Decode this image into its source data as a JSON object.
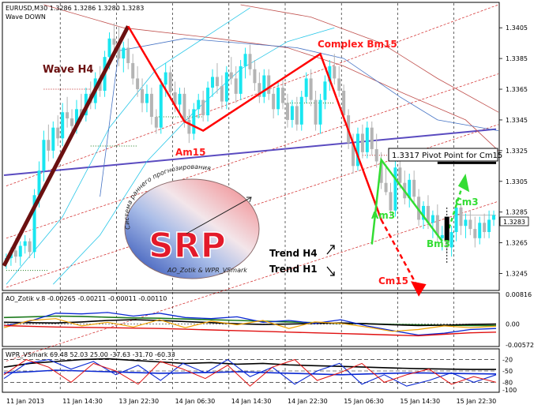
{
  "header": {
    "symbol_line": "EURUSD,M30  1.3286 1.3286 1.3280 1.3283",
    "subtitle": "Wave DOWN"
  },
  "colors": {
    "bar_cyan": "#19e6f0",
    "bar_gray": "#b4b4b4",
    "wave_h4": "#6b1010",
    "red": "#ff0000",
    "green": "#33dd33",
    "pivot": "#5a4bc0",
    "ao_black": "#000000",
    "ao_green": "#1c7a1c",
    "ao_blue": "#0a28d2",
    "ao_orange": "#f0a000",
    "ao_red": "#e01010"
  },
  "chart_data": [
    {
      "type": "candlestick",
      "name": "main",
      "ylim": [
        1.3235,
        1.342
      ],
      "y_ticks": [
        1.3245,
        1.3265,
        1.3285,
        1.3305,
        1.3325,
        1.3345,
        1.3365,
        1.3385,
        1.3405
      ],
      "current_price_label": "1.3283",
      "current_price": 1.3283,
      "x_labels": [
        "11 Jan 2013",
        "11 Jan 14:30",
        "13 Jan 22:30",
        "14 Jan 06:30",
        "14 Jan 14:30",
        "14 Jan 22:30",
        "15 Jan 06:30",
        "15 Jan 14:30",
        "15 Jan 22:30"
      ],
      "x_label_index": [
        0,
        12,
        24,
        36,
        48,
        60,
        72,
        84,
        96
      ],
      "vertical_grid_index": [
        12,
        24,
        36,
        48,
        60,
        72,
        84,
        96
      ],
      "bars_total": 105,
      "bars": [
        [
          1.3252,
          1.3258,
          1.3248,
          1.3255,
          "c"
        ],
        [
          1.3255,
          1.3262,
          1.325,
          1.326,
          "c"
        ],
        [
          1.326,
          1.3268,
          1.3252,
          1.3256,
          "g"
        ],
        [
          1.3256,
          1.3266,
          1.325,
          1.3263,
          "c"
        ],
        [
          1.3263,
          1.327,
          1.3258,
          1.3266,
          "c"
        ],
        [
          1.3266,
          1.3268,
          1.3255,
          1.3259,
          "g"
        ],
        [
          1.3259,
          1.33,
          1.3255,
          1.3296,
          "c"
        ],
        [
          1.3296,
          1.3318,
          1.3288,
          1.3312,
          "c"
        ],
        [
          1.3312,
          1.3338,
          1.3305,
          1.3332,
          "c"
        ],
        [
          1.3332,
          1.3342,
          1.3318,
          1.3325,
          "g"
        ],
        [
          1.3325,
          1.3344,
          1.332,
          1.334,
          "c"
        ],
        [
          1.334,
          1.3348,
          1.3328,
          1.3333,
          "g"
        ],
        [
          1.3333,
          1.3356,
          1.3328,
          1.335,
          "c"
        ],
        [
          1.335,
          1.336,
          1.334,
          1.3346,
          "g"
        ],
        [
          1.3346,
          1.3352,
          1.3336,
          1.3341,
          "g"
        ],
        [
          1.3341,
          1.3358,
          1.3336,
          1.3352,
          "c"
        ],
        [
          1.3352,
          1.3362,
          1.3344,
          1.3348,
          "g"
        ],
        [
          1.3348,
          1.3366,
          1.3344,
          1.3362,
          "c"
        ],
        [
          1.3362,
          1.337,
          1.3352,
          1.3356,
          "g"
        ],
        [
          1.3356,
          1.3376,
          1.3352,
          1.3372,
          "c"
        ],
        [
          1.3372,
          1.338,
          1.336,
          1.3364,
          "g"
        ],
        [
          1.3364,
          1.339,
          1.336,
          1.3386,
          "c"
        ],
        [
          1.3386,
          1.3402,
          1.3378,
          1.3398,
          "c"
        ],
        [
          1.3398,
          1.3408,
          1.339,
          1.3394,
          "g"
        ],
        [
          1.3394,
          1.3406,
          1.338,
          1.3385,
          "g"
        ],
        [
          1.3385,
          1.3396,
          1.3376,
          1.3392,
          "c"
        ],
        [
          1.3392,
          1.3398,
          1.3378,
          1.3382,
          "g"
        ],
        [
          1.3382,
          1.3388,
          1.3368,
          1.3372,
          "g"
        ],
        [
          1.3372,
          1.338,
          1.336,
          1.3365,
          "g"
        ],
        [
          1.3365,
          1.3372,
          1.335,
          1.3356,
          "g"
        ],
        [
          1.3356,
          1.3368,
          1.335,
          1.3362,
          "c"
        ],
        [
          1.3362,
          1.3366,
          1.3342,
          1.3347,
          "g"
        ],
        [
          1.3347,
          1.3352,
          1.3336,
          1.334,
          "g"
        ],
        [
          1.334,
          1.3372,
          1.3336,
          1.3368,
          "c"
        ],
        [
          1.3368,
          1.3382,
          1.336,
          1.3376,
          "c"
        ],
        [
          1.3376,
          1.338,
          1.3358,
          1.3363,
          "g"
        ],
        [
          1.3363,
          1.337,
          1.335,
          1.3355,
          "g"
        ],
        [
          1.3355,
          1.3366,
          1.335,
          1.3362,
          "c"
        ],
        [
          1.3362,
          1.3366,
          1.334,
          1.3345,
          "g"
        ],
        [
          1.3345,
          1.3352,
          1.333,
          1.3336,
          "g"
        ],
        [
          1.3336,
          1.3356,
          1.3332,
          1.3352,
          "c"
        ],
        [
          1.3352,
          1.3362,
          1.3346,
          1.3358,
          "c"
        ],
        [
          1.3358,
          1.3364,
          1.3344,
          1.3348,
          "g"
        ],
        [
          1.3348,
          1.337,
          1.3344,
          1.3366,
          "c"
        ],
        [
          1.3366,
          1.3378,
          1.336,
          1.3373,
          "c"
        ],
        [
          1.3373,
          1.3382,
          1.3362,
          1.3367,
          "g"
        ],
        [
          1.3367,
          1.3374,
          1.3352,
          1.3357,
          "g"
        ],
        [
          1.3357,
          1.338,
          1.3352,
          1.3376,
          "c"
        ],
        [
          1.3376,
          1.3386,
          1.3368,
          1.3372,
          "g"
        ],
        [
          1.3372,
          1.338,
          1.3356,
          1.3362,
          "g"
        ],
        [
          1.3362,
          1.3384,
          1.3358,
          1.338,
          "c"
        ],
        [
          1.338,
          1.3392,
          1.3372,
          1.3388,
          "c"
        ],
        [
          1.3388,
          1.3394,
          1.3374,
          1.3378,
          "g"
        ],
        [
          1.3378,
          1.3384,
          1.3364,
          1.3369,
          "g"
        ],
        [
          1.3369,
          1.3376,
          1.3356,
          1.336,
          "g"
        ],
        [
          1.336,
          1.3378,
          1.3356,
          1.3374,
          "c"
        ],
        [
          1.3374,
          1.3378,
          1.3358,
          1.3362,
          "g"
        ],
        [
          1.3362,
          1.3366,
          1.3346,
          1.3352,
          "g"
        ],
        [
          1.3352,
          1.337,
          1.3348,
          1.3366,
          "c"
        ],
        [
          1.3366,
          1.3372,
          1.3352,
          1.3356,
          "g"
        ],
        [
          1.3356,
          1.3362,
          1.334,
          1.3345,
          "g"
        ],
        [
          1.3345,
          1.3358,
          1.334,
          1.3354,
          "c"
        ],
        [
          1.3354,
          1.336,
          1.3338,
          1.3342,
          "g"
        ],
        [
          1.3342,
          1.3364,
          1.3338,
          1.336,
          "c"
        ],
        [
          1.336,
          1.3376,
          1.3356,
          1.3372,
          "c"
        ],
        [
          1.3372,
          1.3378,
          1.3354,
          1.3358,
          "g"
        ],
        [
          1.3358,
          1.3364,
          1.3338,
          1.3342,
          "g"
        ],
        [
          1.3342,
          1.3362,
          1.3336,
          1.3358,
          "c"
        ],
        [
          1.3358,
          1.3374,
          1.3352,
          1.337,
          "c"
        ],
        [
          1.337,
          1.3384,
          1.3364,
          1.338,
          "c"
        ],
        [
          1.338,
          1.3388,
          1.3368,
          1.3372,
          "g"
        ],
        [
          1.3372,
          1.338,
          1.336,
          1.3364,
          "g"
        ],
        [
          1.3364,
          1.3368,
          1.3344,
          1.3348,
          "g"
        ],
        [
          1.3348,
          1.3352,
          1.3326,
          1.333,
          "g"
        ],
        [
          1.333,
          1.3336,
          1.331,
          1.3315,
          "g"
        ],
        [
          1.3315,
          1.334,
          1.3312,
          1.3336,
          "c"
        ],
        [
          1.3336,
          1.3342,
          1.332,
          1.3324,
          "g"
        ],
        [
          1.3324,
          1.3344,
          1.332,
          1.334,
          "c"
        ],
        [
          1.334,
          1.3344,
          1.3322,
          1.3326,
          "g"
        ],
        [
          1.3326,
          1.3336,
          1.3314,
          1.3318,
          "g"
        ],
        [
          1.3318,
          1.3324,
          1.33,
          1.3304,
          "g"
        ],
        [
          1.3304,
          1.3316,
          1.3296,
          1.3298,
          "g"
        ],
        [
          1.3298,
          1.3304,
          1.3282,
          1.3286,
          "g"
        ],
        [
          1.3286,
          1.3318,
          1.3282,
          1.3314,
          "c"
        ],
        [
          1.3314,
          1.3322,
          1.33,
          1.3304,
          "g"
        ],
        [
          1.3304,
          1.3312,
          1.329,
          1.3294,
          "g"
        ],
        [
          1.3294,
          1.331,
          1.3288,
          1.3306,
          "c"
        ],
        [
          1.3306,
          1.3312,
          1.329,
          1.3295,
          "g"
        ],
        [
          1.3295,
          1.33,
          1.3276,
          1.328,
          "g"
        ],
        [
          1.328,
          1.3292,
          1.3274,
          1.3289,
          "c"
        ],
        [
          1.3289,
          1.3296,
          1.3274,
          1.3278,
          "g"
        ],
        [
          1.3278,
          1.3286,
          1.3268,
          1.3283,
          "c"
        ],
        [
          1.3283,
          1.329,
          1.3266,
          1.327,
          "g"
        ],
        [
          1.327,
          1.3276,
          1.326,
          1.3268,
          "c"
        ],
        [
          1.3268,
          1.3272,
          1.3258,
          1.3262,
          "g"
        ],
        [
          1.3262,
          1.3276,
          1.3256,
          1.3272,
          "c"
        ],
        [
          1.3272,
          1.3292,
          1.3266,
          1.3288,
          "c"
        ],
        [
          1.3288,
          1.329,
          1.327,
          1.3276,
          "g"
        ],
        [
          1.3276,
          1.3284,
          1.3268,
          1.328,
          "c"
        ],
        [
          1.328,
          1.3286,
          1.327,
          1.3274,
          "g"
        ],
        [
          1.3274,
          1.3282,
          1.3262,
          1.3268,
          "g"
        ],
        [
          1.3268,
          1.3282,
          1.3264,
          1.3278,
          "c"
        ],
        [
          1.3278,
          1.3284,
          1.3268,
          1.3272,
          "g"
        ],
        [
          1.3272,
          1.3286,
          1.3268,
          1.328,
          "c"
        ],
        [
          1.328,
          1.3286,
          1.3276,
          1.3283,
          "c"
        ]
      ],
      "annotations": [
        {
          "text": "Wave H4",
          "color": "#6b1010",
          "at": [
            8,
            1.3385
          ]
        },
        {
          "text": "Complex Bm15",
          "color": "#ff0000",
          "at": [
            65,
            1.3395
          ]
        },
        {
          "text": "Am15",
          "color": "#ff0000",
          "at": [
            36,
            1.3322
          ]
        },
        {
          "text": "1.3317 Pivot Point for Cm15",
          "color": "#000000",
          "at": [
            81,
            1.3318
          ]
        },
        {
          "text": "Am3",
          "color": "#33dd33",
          "at": [
            78,
            1.328
          ]
        },
        {
          "text": "Bm3",
          "color": "#33dd33",
          "at": [
            89,
            1.327
          ]
        },
        {
          "text": "Cm3",
          "color": "#33dd33",
          "at": [
            94,
            1.329
          ]
        },
        {
          "text": "Trend H4",
          "color": "#000000",
          "at": [
            55,
            1.3262
          ]
        },
        {
          "text": "Trend H1",
          "color": "#000000",
          "at": [
            55,
            1.3254
          ]
        },
        {
          "text": "Cm15",
          "color": "#ff0000",
          "at": [
            77,
            1.3246
          ]
        }
      ],
      "logo": {
        "letters": "SRP",
        "arc_text": "Система раннего прогнозирования",
        "footer_text": "AO_Zotik & WPR_VSmark"
      }
    },
    {
      "type": "line",
      "name": "ao",
      "label": "AO_Zotik v.8 -0.00265 -0.00211 -0.00011 -0.00110",
      "y_ticks": [
        "0.00816",
        "0.00",
        "-0.00572"
      ],
      "ylim": [
        -0.00572,
        0.00816
      ]
    },
    {
      "type": "line",
      "name": "wpr",
      "label": "WPR_VSmark 69.48 52.03 25.00 -37.63 -31.70 -60.33",
      "y_ticks": [
        "-20",
        "-50",
        "-80",
        "-100"
      ],
      "ylim": [
        -100,
        0
      ]
    }
  ]
}
